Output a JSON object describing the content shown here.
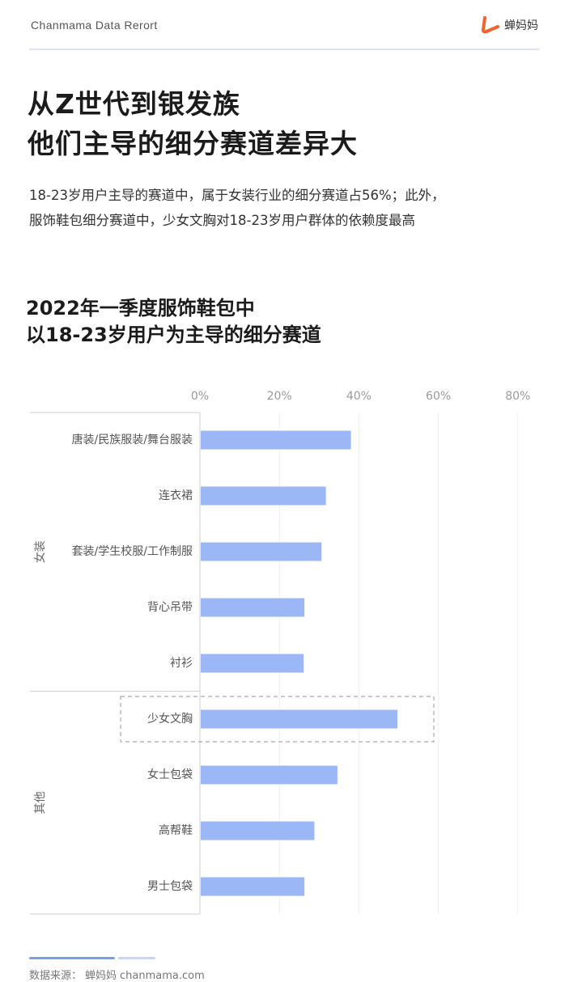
{
  "header": {
    "brand_text": "Chanmama Data Rerort",
    "logo_text": "蝉妈妈",
    "logo_color": "#f0642d"
  },
  "headline": {
    "line1": "从Z世代到银发族",
    "line2": "他们主导的细分赛道差异大"
  },
  "subtitle": {
    "line1": "18-23岁用户主导的赛道中，属于女装行业的细分赛道占56%；此外，",
    "line2": "服饰鞋包细分赛道中，少女文胸对18-23岁用户群体的依赖度最高"
  },
  "chart_title": {
    "line1": "2022年一季度服饰鞋包中",
    "line2": "以18-23岁用户为主导的细分赛道"
  },
  "chart_data": {
    "type": "bar",
    "orientation": "horizontal",
    "title": "2022年一季度服饰鞋包中 以18-23岁用户为主导的细分赛道",
    "xlim": [
      0,
      80
    ],
    "x_ticks": [
      "0%",
      "20%",
      "40%",
      "60%",
      "80%"
    ],
    "x_tick_values": [
      0,
      20,
      40,
      60,
      80
    ],
    "categories": [
      "唐装/民族服装/舞台服装",
      "连衣裙",
      "套装/学生校服/工作制服",
      "背心吊带",
      "衬衫",
      "少女文胸",
      "女士包袋",
      "高帮鞋",
      "男士包袋"
    ],
    "values": [
      38,
      31.7,
      30.6,
      26.3,
      26.1,
      49.7,
      34.6,
      28.8,
      26.3
    ],
    "groups": [
      {
        "name": "女装",
        "categories": [
          "唐装/民族服装/舞台服装",
          "连衣裙",
          "套装/学生校服/工作制服",
          "背心吊带",
          "衬衫"
        ]
      },
      {
        "name": "其他",
        "categories": [
          "少女文胸",
          "女士包袋",
          "高帮鞋",
          "男士包袋"
        ]
      }
    ],
    "highlighted": "少女文胸",
    "bar_color": "#9cb7f5",
    "grid": true,
    "legend": "none"
  },
  "footer": {
    "source_label": "数据来源：",
    "source_name": "蝉妈妈",
    "source_site": "chanmama.com"
  }
}
